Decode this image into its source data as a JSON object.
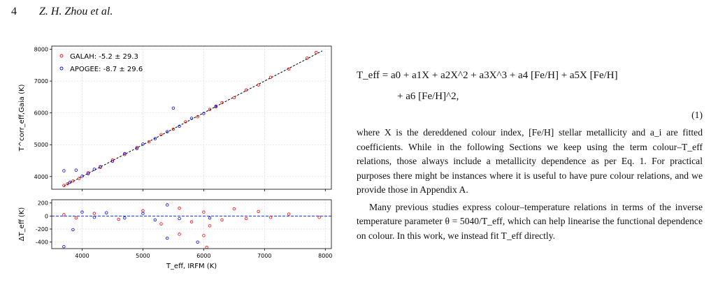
{
  "header": {
    "page_number": "4",
    "authors": "Z. H. Zhou et al."
  },
  "equation": {
    "line1": "T_eff = a0 + a1X + a2X^2 + a3X^3 + a4 [Fe/H] + a5X [Fe/H]",
    "line2": "+ a6 [Fe/H]^2,",
    "number": "(1)"
  },
  "body": {
    "p1": "where X is the dereddened colour index, [Fe/H] stellar metallicity and a_i are fitted coefficients. While in the following Sections we keep using the term colour–T_eff relations, those always include a metallicity dependence as per Eq. 1. For practical purposes there might be instances where it is useful to have pure colour relations, and we provide those in Appendix A.",
    "p2": "Many previous studies express colour–temperature relations in terms of the inverse temperature parameter θ = 5040/T_eff, which can help linearise the functional dependence on colour. In this work, we instead fit T_eff directly."
  },
  "chart_data": [
    {
      "type": "scatter",
      "panel": "top",
      "ylabel": "T^corr_eff,Gaia (K)",
      "xlim": [
        3500,
        8100
      ],
      "ylim": [
        3600,
        8100
      ],
      "yticks": [
        4000,
        5000,
        6000,
        7000,
        8000
      ],
      "grid": true,
      "legend_placement": "top-left",
      "series": [
        {
          "name": "GALAH: -5.2 ± 29.3",
          "color": "#ff0000",
          "points": [
            [
              3700,
              3720
            ],
            [
              3760,
              3770
            ],
            [
              3850,
              3860
            ],
            [
              3950,
              3940
            ],
            [
              4100,
              4120
            ],
            [
              4300,
              4290
            ],
            [
              4500,
              4520
            ],
            [
              4700,
              4690
            ],
            [
              4900,
              4910
            ],
            [
              5100,
              5090
            ],
            [
              5300,
              5320
            ],
            [
              5500,
              5490
            ],
            [
              5700,
              5720
            ],
            [
              5900,
              5880
            ],
            [
              6100,
              6110
            ],
            [
              6200,
              6190
            ],
            [
              6300,
              6320
            ],
            [
              6500,
              6480
            ],
            [
              6700,
              6720
            ],
            [
              6900,
              6880
            ],
            [
              7100,
              7120
            ],
            [
              7400,
              7380
            ],
            [
              7700,
              7720
            ],
            [
              7850,
              7900
            ]
          ]
        },
        {
          "name": "APOGEE: -8.7 ± 29.6",
          "color": "#0000ff",
          "points": [
            [
              3700,
              4180
            ],
            [
              3800,
              3820
            ],
            [
              3900,
              4200
            ],
            [
              4000,
              4010
            ],
            [
              4100,
              4090
            ],
            [
              4200,
              4230
            ],
            [
              4300,
              4310
            ],
            [
              4500,
              4480
            ],
            [
              4700,
              4720
            ],
            [
              4900,
              4880
            ],
            [
              5000,
              5020
            ],
            [
              5200,
              5190
            ],
            [
              5400,
              5410
            ],
            [
              5500,
              6150
            ],
            [
              5600,
              5580
            ],
            [
              5800,
              5830
            ],
            [
              6000,
              5980
            ],
            [
              6200,
              6210
            ]
          ]
        }
      ]
    },
    {
      "type": "scatter",
      "panel": "bottom",
      "xlabel": "T_eff, IRFM (K)",
      "ylabel": "ΔT_eff (K)",
      "xlim": [
        3500,
        8100
      ],
      "ylim": [
        -500,
        250
      ],
      "xticks": [
        4000,
        5000,
        6000,
        7000,
        8000
      ],
      "yticks": [
        -400,
        -200,
        0,
        200
      ],
      "grid": true,
      "series": [
        {
          "name": "GALAH",
          "color": "#ff0000",
          "points": [
            [
              3700,
              20
            ],
            [
              3900,
              -30
            ],
            [
              4200,
              40
            ],
            [
              4600,
              -50
            ],
            [
              5000,
              80
            ],
            [
              5300,
              -120
            ],
            [
              5600,
              120
            ],
            [
              5800,
              -90
            ],
            [
              6000,
              60
            ],
            [
              6100,
              -150
            ],
            [
              6300,
              -60
            ],
            [
              6500,
              110
            ],
            [
              6700,
              -40
            ],
            [
              6900,
              70
            ],
            [
              7100,
              -20
            ],
            [
              7400,
              30
            ],
            [
              7900,
              -20
            ],
            [
              6050,
              -480
            ],
            [
              5600,
              -280
            ],
            [
              6000,
              -300
            ]
          ]
        },
        {
          "name": "APOGEE",
          "color": "#0000ff",
          "points": [
            [
              3700,
              -470
            ],
            [
              3850,
              -210
            ],
            [
              4000,
              60
            ],
            [
              4200,
              -20
            ],
            [
              4400,
              50
            ],
            [
              4700,
              -30
            ],
            [
              5000,
              40
            ],
            [
              5200,
              -60
            ],
            [
              5400,
              170
            ],
            [
              5600,
              -40
            ],
            [
              5900,
              -400
            ],
            [
              6100,
              -30
            ],
            [
              5400,
              -340
            ]
          ]
        }
      ]
    }
  ]
}
